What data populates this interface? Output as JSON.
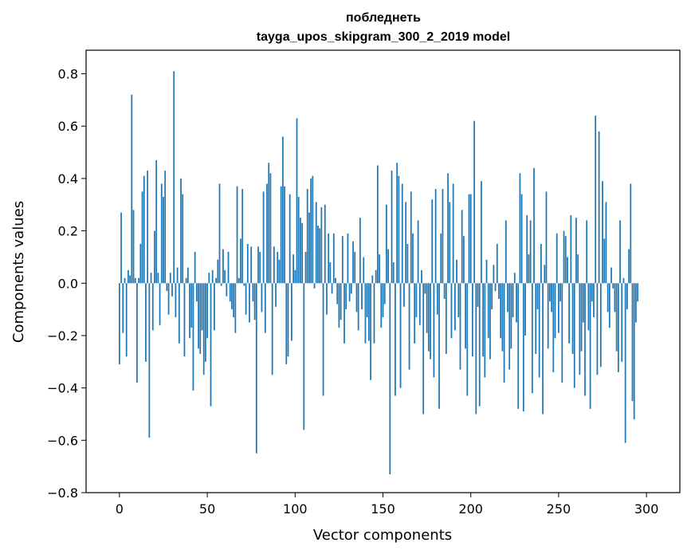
{
  "chart_data": {
    "type": "bar",
    "title": "побледнеть",
    "subtitle": "tayga_upos_skipgram_300_2_2019 model",
    "xlabel": "Vector components",
    "ylabel": "Components values",
    "xlim": [
      -19,
      319
    ],
    "ylim": [
      -0.8,
      0.89
    ],
    "grid": false,
    "bar_color": "#1f77b4",
    "xticks": [
      0,
      50,
      100,
      150,
      200,
      250,
      300
    ],
    "xtick_labels": [
      "0",
      "50",
      "100",
      "150",
      "200",
      "250",
      "300"
    ],
    "yticks": [
      -0.8,
      -0.6,
      -0.4,
      -0.2,
      0.0,
      0.2,
      0.4,
      0.6,
      0.8
    ],
    "ytick_labels": [
      "−0.8",
      "−0.6",
      "−0.4",
      "−0.2",
      "0.0",
      "0.2",
      "0.4",
      "0.6",
      "0.8"
    ],
    "series": [
      {
        "name": "components",
        "values": [
          -0.31,
          0.27,
          -0.19,
          0.02,
          -0.28,
          0.05,
          0.03,
          0.72,
          0.28,
          0.02,
          -0.38,
          0.02,
          0.15,
          0.35,
          0.41,
          -0.3,
          0.43,
          -0.59,
          0.04,
          -0.18,
          0.2,
          0.47,
          0.04,
          -0.16,
          0.38,
          0.33,
          0.43,
          -0.03,
          -0.12,
          0.04,
          -0.05,
          0.81,
          -0.13,
          0.06,
          -0.23,
          0.4,
          0.34,
          -0.28,
          0.02,
          0.06,
          -0.21,
          -0.17,
          -0.41,
          0.12,
          -0.07,
          -0.25,
          -0.27,
          -0.18,
          -0.35,
          -0.3,
          -0.21,
          0.04,
          -0.47,
          0.05,
          -0.18,
          0.02,
          0.09,
          0.38,
          -0.01,
          0.13,
          0.05,
          -0.05,
          0.12,
          -0.07,
          -0.1,
          -0.13,
          -0.19,
          0.37,
          0.02,
          0.17,
          0.36,
          -0.01,
          -0.12,
          0.15,
          -0.15,
          0.14,
          -0.07,
          -0.14,
          -0.65,
          0.14,
          0.12,
          -0.11,
          0.35,
          -0.19,
          0.38,
          0.46,
          0.42,
          -0.35,
          0.14,
          -0.09,
          0.12,
          0.09,
          0.37,
          0.56,
          0.37,
          -0.31,
          -0.28,
          0.34,
          -0.22,
          0.11,
          0.05,
          0.63,
          0.33,
          0.25,
          0.23,
          -0.56,
          0.12,
          0.36,
          0.27,
          0.4,
          0.41,
          -0.02,
          0.31,
          0.22,
          0.21,
          0.29,
          -0.43,
          0.3,
          -0.12,
          0.19,
          0.08,
          -0.04,
          0.19,
          0.02,
          -0.08,
          -0.17,
          -0.14,
          0.18,
          -0.23,
          -0.1,
          0.19,
          -0.07,
          -0.04,
          0.16,
          0.12,
          -0.11,
          -0.18,
          0.25,
          -0.1,
          0.1,
          -0.23,
          -0.13,
          -0.22,
          -0.37,
          0.03,
          -0.23,
          0.05,
          0.45,
          0.11,
          -0.17,
          -0.13,
          -0.08,
          0.3,
          0.13,
          -0.73,
          0.43,
          0.08,
          -0.43,
          0.46,
          0.41,
          -0.4,
          0.38,
          -0.09,
          0.31,
          0.15,
          -0.33,
          0.35,
          0.19,
          -0.23,
          -0.13,
          0.24,
          -0.16,
          0.05,
          -0.5,
          -0.04,
          -0.19,
          -0.26,
          -0.29,
          0.32,
          -0.36,
          0.36,
          -0.12,
          -0.48,
          0.19,
          0.36,
          -0.06,
          -0.27,
          0.42,
          0.31,
          -0.21,
          0.38,
          -0.18,
          0.09,
          -0.13,
          -0.33,
          0.28,
          0.18,
          -0.25,
          -0.43,
          0.34,
          0.34,
          -0.28,
          0.62,
          -0.5,
          -0.09,
          -0.47,
          0.39,
          -0.28,
          -0.36,
          0.09,
          -0.21,
          -0.29,
          -0.1,
          0.07,
          -0.03,
          0.15,
          -0.06,
          -0.21,
          -0.26,
          -0.38,
          0.24,
          -0.11,
          -0.33,
          -0.25,
          -0.13,
          0.04,
          -0.15,
          -0.48,
          0.42,
          0.34,
          -0.49,
          -0.2,
          0.26,
          0.11,
          0.24,
          -0.42,
          0.44,
          -0.27,
          -0.1,
          -0.36,
          0.15,
          -0.5,
          0.07,
          0.35,
          -0.25,
          -0.07,
          -0.11,
          -0.34,
          -0.21,
          0.19,
          -0.19,
          -0.07,
          -0.38,
          0.2,
          0.18,
          0.1,
          -0.23,
          0.26,
          -0.27,
          -0.4,
          0.25,
          0.11,
          -0.35,
          -0.26,
          -0.15,
          -0.43,
          0.24,
          -0.18,
          -0.48,
          -0.07,
          -0.13,
          0.64,
          -0.35,
          0.58,
          -0.32,
          0.39,
          0.17,
          0.31,
          -0.11,
          -0.17,
          0.06,
          -0.02,
          -0.11,
          -0.26,
          -0.34,
          0.24,
          -0.3,
          0.02,
          -0.61,
          -0.1,
          0.13,
          0.38,
          -0.45,
          -0.52,
          -0.15,
          -0.07
        ]
      }
    ]
  }
}
